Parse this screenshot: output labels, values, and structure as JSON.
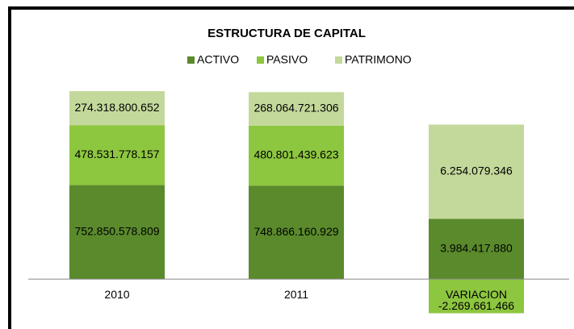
{
  "chart_data": {
    "type": "stacked_bar",
    "title": "ESTRUCTURA DE CAPITAL",
    "categories": [
      "2010",
      "2011",
      "VARIACION"
    ],
    "category_axis": [
      "y",
      "y",
      "y2"
    ],
    "series": [
      {
        "name": "ACTIVO",
        "color": "#5a8a2c",
        "values": [
          752850578809,
          748866160929,
          3984417880
        ],
        "value_labels": [
          "752.850.578.809",
          "748.866.160.929",
          "3.984.417.880"
        ]
      },
      {
        "name": "PASIVO",
        "color": "#8dc63f",
        "values": [
          478531778157,
          480801439623,
          -2269661466
        ],
        "value_labels": [
          "478.531.778.157",
          "480.801.439.623",
          "-2.269.661.466"
        ]
      },
      {
        "name": "PATRIMONO",
        "color": "#c3d99b",
        "values": [
          274318800652,
          268064721306,
          6254079346
        ],
        "value_labels": [
          "274.318.800.652",
          "268.064.721.306",
          "6.254.079.346"
        ]
      }
    ],
    "ylim": [
      -316000000000,
      1590000000000
    ],
    "y2lim": [
      -2620000000,
      13150000000
    ],
    "legend": "top"
  }
}
